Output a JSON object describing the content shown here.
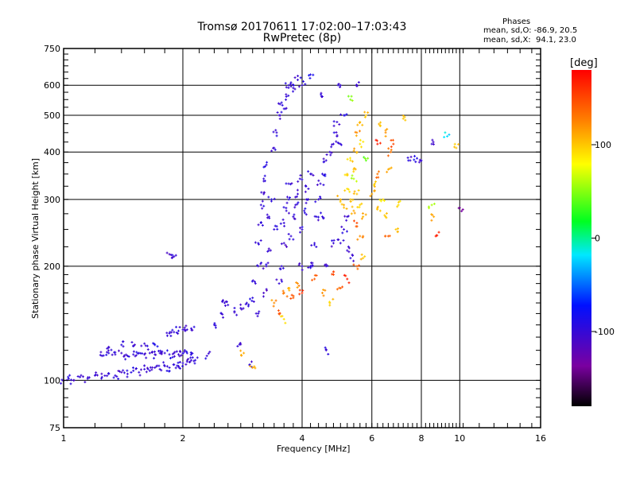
{
  "chart_data": {
    "type": "scatter",
    "title": "Tromsø 20170611 17:02:00–17:03:43",
    "subtitle": "RwPretec (8p)",
    "xlabel": "Frequency [MHz]",
    "ylabel": "Stationary phase Virtual Height [km]",
    "xscale": "log",
    "yscale": "log",
    "xlim": [
      1,
      16
    ],
    "ylim": [
      75,
      750
    ],
    "xticks": [
      1,
      2,
      4,
      6,
      8,
      10,
      16
    ],
    "yticks": [
      75,
      100,
      200,
      300,
      400,
      500,
      600,
      750
    ],
    "grid": true,
    "stats": {
      "heading": "Phases",
      "o_line": "mean, sd,O: -86.9, 20.5",
      "x_line": "mean, sd,X:  94.1, 23.0"
    },
    "colorbar": {
      "label": "[deg]",
      "range": [
        -180,
        180
      ],
      "ticks": [
        100,
        0,
        -100
      ],
      "colormap": "rainbow"
    },
    "point_fields": [
      "frequency_MHz",
      "height_km",
      "phase_deg"
    ],
    "points": [
      [
        1.0,
        100,
        -100
      ],
      [
        1.03,
        101,
        -95
      ],
      [
        1.06,
        100,
        -105
      ],
      [
        1.1,
        102,
        -100
      ],
      [
        1.15,
        101,
        -98
      ],
      [
        1.2,
        103,
        -102
      ],
      [
        1.25,
        102,
        -100
      ],
      [
        1.3,
        104,
        -95
      ],
      [
        1.35,
        103,
        -100
      ],
      [
        1.4,
        105,
        -110
      ],
      [
        1.45,
        104,
        -100
      ],
      [
        1.5,
        106,
        -95
      ],
      [
        1.55,
        105,
        -100
      ],
      [
        1.6,
        107,
        -98
      ],
      [
        1.65,
        106,
        -100
      ],
      [
        1.7,
        108,
        -105
      ],
      [
        1.75,
        107,
        -100
      ],
      [
        1.8,
        109,
        -100
      ],
      [
        1.85,
        108,
        -95
      ],
      [
        1.9,
        110,
        -100
      ],
      [
        1.95,
        109,
        -100
      ],
      [
        2.0,
        111,
        -98
      ],
      [
        2.05,
        112,
        -100
      ],
      [
        2.1,
        113,
        -100
      ],
      [
        2.15,
        113,
        -95
      ],
      [
        1.25,
        116,
        -100
      ],
      [
        1.3,
        118,
        -95
      ],
      [
        1.35,
        117,
        -100
      ],
      [
        1.4,
        118,
        -105
      ],
      [
        1.45,
        116,
        -100
      ],
      [
        1.5,
        117,
        -100
      ],
      [
        1.55,
        118,
        -95
      ],
      [
        1.6,
        117,
        -100
      ],
      [
        1.65,
        118,
        -100
      ],
      [
        1.7,
        117,
        -98
      ],
      [
        1.75,
        118,
        -100
      ],
      [
        1.8,
        118,
        -100
      ],
      [
        1.85,
        117,
        -95
      ],
      [
        1.9,
        118,
        -100
      ],
      [
        1.95,
        117,
        -100
      ],
      [
        2.0,
        118,
        -100
      ],
      [
        2.05,
        118,
        -95
      ],
      [
        2.1,
        117,
        -100
      ],
      [
        1.3,
        122,
        -100
      ],
      [
        1.4,
        124,
        -95
      ],
      [
        1.5,
        123,
        -100
      ],
      [
        1.6,
        125,
        -100
      ],
      [
        1.7,
        124,
        -90
      ],
      [
        1.85,
        133,
        -100
      ],
      [
        1.9,
        134,
        -100
      ],
      [
        1.95,
        135,
        -95
      ],
      [
        2.0,
        136,
        -100
      ],
      [
        2.05,
        136,
        -100
      ],
      [
        2.1,
        137,
        -100
      ],
      [
        1.85,
        215,
        -110
      ],
      [
        1.9,
        212,
        -100
      ],
      [
        2.3,
        116,
        -100
      ],
      [
        2.4,
        140,
        -100
      ],
      [
        2.5,
        150,
        -95
      ],
      [
        2.55,
        160,
        -100
      ],
      [
        2.6,
        158,
        -100
      ],
      [
        2.7,
        152,
        -98
      ],
      [
        2.8,
        155,
        -100
      ],
      [
        2.9,
        160,
        -100
      ],
      [
        3.0,
        165,
        -95
      ],
      [
        2.75,
        123,
        -100
      ],
      [
        2.95,
        110,
        -100
      ],
      [
        2.85,
        118,
        110
      ],
      [
        3.0,
        108,
        110
      ],
      [
        3.05,
        180,
        -100
      ],
      [
        3.1,
        200,
        -100
      ],
      [
        3.1,
        230,
        -95
      ],
      [
        3.15,
        260,
        -100
      ],
      [
        3.15,
        290,
        -100
      ],
      [
        3.2,
        310,
        -105
      ],
      [
        3.2,
        340,
        -100
      ],
      [
        3.25,
        370,
        -95
      ],
      [
        3.1,
        150,
        -100
      ],
      [
        3.2,
        170,
        -110
      ],
      [
        3.25,
        200,
        -100
      ],
      [
        3.3,
        220,
        -100
      ],
      [
        3.3,
        270,
        -100
      ],
      [
        3.35,
        300,
        -90
      ],
      [
        3.4,
        250,
        -100
      ],
      [
        3.4,
        410,
        -100
      ],
      [
        3.45,
        450,
        -100
      ],
      [
        3.5,
        500,
        -100
      ],
      [
        3.55,
        540,
        -95
      ],
      [
        3.6,
        520,
        -100
      ],
      [
        3.65,
        560,
        -100
      ],
      [
        3.7,
        600,
        -100
      ],
      [
        3.75,
        610,
        -95
      ],
      [
        3.8,
        590,
        -100
      ],
      [
        3.9,
        620,
        -100
      ],
      [
        4.0,
        600,
        -100
      ],
      [
        4.2,
        640,
        -90
      ],
      [
        3.5,
        180,
        -100
      ],
      [
        3.55,
        200,
        -100
      ],
      [
        3.6,
        230,
        -105
      ],
      [
        3.6,
        260,
        -100
      ],
      [
        3.65,
        280,
        -100
      ],
      [
        3.7,
        300,
        -95
      ],
      [
        3.7,
        330,
        -100
      ],
      [
        3.75,
        240,
        -100
      ],
      [
        3.8,
        270,
        -100
      ],
      [
        3.85,
        290,
        -100
      ],
      [
        3.9,
        310,
        -100
      ],
      [
        3.95,
        340,
        -100
      ],
      [
        4.0,
        200,
        -100
      ],
      [
        4.0,
        250,
        -100
      ],
      [
        4.05,
        280,
        -95
      ],
      [
        4.1,
        300,
        -100
      ],
      [
        4.15,
        320,
        -100
      ],
      [
        4.2,
        350,
        -100
      ],
      [
        4.25,
        200,
        -100
      ],
      [
        4.3,
        230,
        -100
      ],
      [
        4.35,
        270,
        -100
      ],
      [
        4.4,
        300,
        -100
      ],
      [
        4.45,
        330,
        -100
      ],
      [
        4.5,
        350,
        -95
      ],
      [
        4.6,
        380,
        -100
      ],
      [
        4.7,
        400,
        -100
      ],
      [
        4.8,
        420,
        -100
      ],
      [
        4.9,
        440,
        -100
      ],
      [
        5.0,
        420,
        -100
      ],
      [
        5.0,
        230,
        -100
      ],
      [
        5.1,
        250,
        -100
      ],
      [
        5.2,
        220,
        -100
      ],
      [
        5.3,
        210,
        -95
      ],
      [
        4.8,
        230,
        -100
      ],
      [
        4.6,
        200,
        -100
      ],
      [
        4.5,
        270,
        -100
      ],
      [
        5.2,
        270,
        -100
      ],
      [
        4.9,
        480,
        -100
      ],
      [
        5.1,
        500,
        -95
      ],
      [
        4.5,
        560,
        -100
      ],
      [
        5.0,
        600,
        -100
      ],
      [
        5.5,
        600,
        -100
      ],
      [
        4.6,
        120,
        -100
      ],
      [
        4.2,
        200,
        -100
      ],
      [
        3.4,
        160,
        120
      ],
      [
        3.5,
        150,
        150
      ],
      [
        3.6,
        170,
        130
      ],
      [
        3.7,
        175,
        110
      ],
      [
        3.8,
        165,
        140
      ],
      [
        3.9,
        180,
        120
      ],
      [
        4.0,
        170,
        160
      ],
      [
        3.6,
        145,
        90
      ],
      [
        4.3,
        185,
        140
      ],
      [
        4.5,
        170,
        120
      ],
      [
        4.7,
        160,
        100
      ],
      [
        4.8,
        190,
        150
      ],
      [
        5.0,
        175,
        140
      ],
      [
        5.2,
        185,
        170
      ],
      [
        5.0,
        300,
        100
      ],
      [
        5.1,
        290,
        110
      ],
      [
        5.2,
        320,
        90
      ],
      [
        5.3,
        300,
        100
      ],
      [
        5.4,
        280,
        110
      ],
      [
        5.5,
        310,
        100
      ],
      [
        5.6,
        290,
        95
      ],
      [
        5.7,
        270,
        105
      ],
      [
        5.2,
        350,
        100
      ],
      [
        5.3,
        380,
        95
      ],
      [
        5.4,
        360,
        100
      ],
      [
        5.5,
        400,
        110
      ],
      [
        5.6,
        420,
        90
      ],
      [
        5.5,
        450,
        120
      ],
      [
        5.6,
        480,
        100
      ],
      [
        5.8,
        500,
        100
      ],
      [
        5.4,
        340,
        60
      ],
      [
        5.5,
        260,
        150
      ],
      [
        5.6,
        240,
        120
      ],
      [
        5.7,
        210,
        100
      ],
      [
        5.5,
        200,
        140
      ],
      [
        5.8,
        380,
        40
      ],
      [
        5.3,
        550,
        50
      ],
      [
        6.0,
        310,
        110
      ],
      [
        6.1,
        330,
        100
      ],
      [
        6.2,
        350,
        130
      ],
      [
        6.3,
        280,
        100
      ],
      [
        6.4,
        300,
        90
      ],
      [
        6.5,
        270,
        100
      ],
      [
        6.6,
        360,
        110
      ],
      [
        6.7,
        400,
        130
      ],
      [
        6.8,
        420,
        150
      ],
      [
        6.5,
        450,
        120
      ],
      [
        6.3,
        470,
        100
      ],
      [
        6.9,
        250,
        100
      ],
      [
        7.0,
        290,
        90
      ],
      [
        6.6,
        240,
        140
      ],
      [
        6.2,
        420,
        170
      ],
      [
        7.5,
        380,
        -100
      ],
      [
        7.8,
        385,
        -90
      ],
      [
        8.0,
        380,
        -100
      ],
      [
        8.5,
        290,
        60
      ],
      [
        8.6,
        270,
        110
      ],
      [
        8.7,
        240,
        170
      ],
      [
        9.3,
        440,
        -20
      ],
      [
        9.8,
        410,
        100
      ],
      [
        10.0,
        285,
        -140
      ],
      [
        8.5,
        420,
        -100
      ],
      [
        7.2,
        490,
        100
      ]
    ]
  }
}
